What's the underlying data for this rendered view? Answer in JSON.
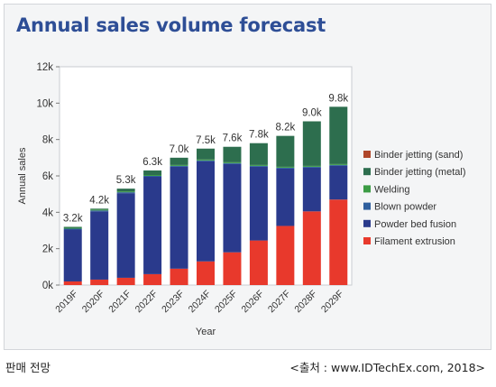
{
  "chart_data": {
    "type": "bar",
    "stacked": true,
    "title": "Annual sales volume forecast",
    "xlabel": "Year",
    "ylabel": "Annual sales",
    "ylim": [
      0,
      12000
    ],
    "yticks": [
      0,
      2000,
      4000,
      6000,
      8000,
      10000,
      12000
    ],
    "ytick_labels": [
      "0k",
      "2k",
      "4k",
      "6k",
      "8k",
      "10k",
      "12k"
    ],
    "grid": false,
    "legend_position": "right",
    "categories": [
      "2019F",
      "2020F",
      "2021F",
      "2022F",
      "2023F",
      "2024F",
      "2025F",
      "2026F",
      "2027F",
      "2028F",
      "2029F"
    ],
    "totals": [
      "3.2k",
      "4.2k",
      "5.3k",
      "6.3k",
      "7.0k",
      "7.5k",
      "7.6k",
      "7.8k",
      "8.2k",
      "9.0k",
      "9.8k"
    ],
    "series": [
      {
        "name": "Filament extrusion",
        "color": "#e8392c",
        "values": [
          200,
          300,
          400,
          600,
          900,
          1300,
          1800,
          2450,
          3250,
          4050,
          4700
        ]
      },
      {
        "name": "Powder bed fusion",
        "color": "#2a3a8c",
        "values": [
          2850,
          3750,
          4650,
          5350,
          5600,
          5500,
          4850,
          4050,
          3150,
          2400,
          1850
        ]
      },
      {
        "name": "Blown powder",
        "color": "#2f5f9e",
        "values": [
          50,
          50,
          50,
          50,
          50,
          50,
          50,
          50,
          50,
          50,
          50
        ]
      },
      {
        "name": "Welding",
        "color": "#3c9c45",
        "values": [
          50,
          50,
          50,
          50,
          50,
          50,
          50,
          50,
          50,
          50,
          50
        ]
      },
      {
        "name": "Binder jetting (metal)",
        "color": "#2d6e4e",
        "values": [
          50,
          50,
          150,
          250,
          400,
          600,
          850,
          1200,
          1700,
          2450,
          3150
        ]
      },
      {
        "name": "Binder jetting (sand)",
        "color": "#b0472a",
        "values": [
          0,
          0,
          0,
          0,
          0,
          0,
          0,
          0,
          0,
          0,
          0
        ]
      }
    ],
    "legend_order": [
      "Binder jetting (sand)",
      "Binder jetting (metal)",
      "Welding",
      "Blown powder",
      "Powder bed fusion",
      "Filament extrusion"
    ]
  },
  "footer": {
    "left": "판매 전망",
    "right": "<출처 : www.IDTechEx.com, 2018>"
  }
}
